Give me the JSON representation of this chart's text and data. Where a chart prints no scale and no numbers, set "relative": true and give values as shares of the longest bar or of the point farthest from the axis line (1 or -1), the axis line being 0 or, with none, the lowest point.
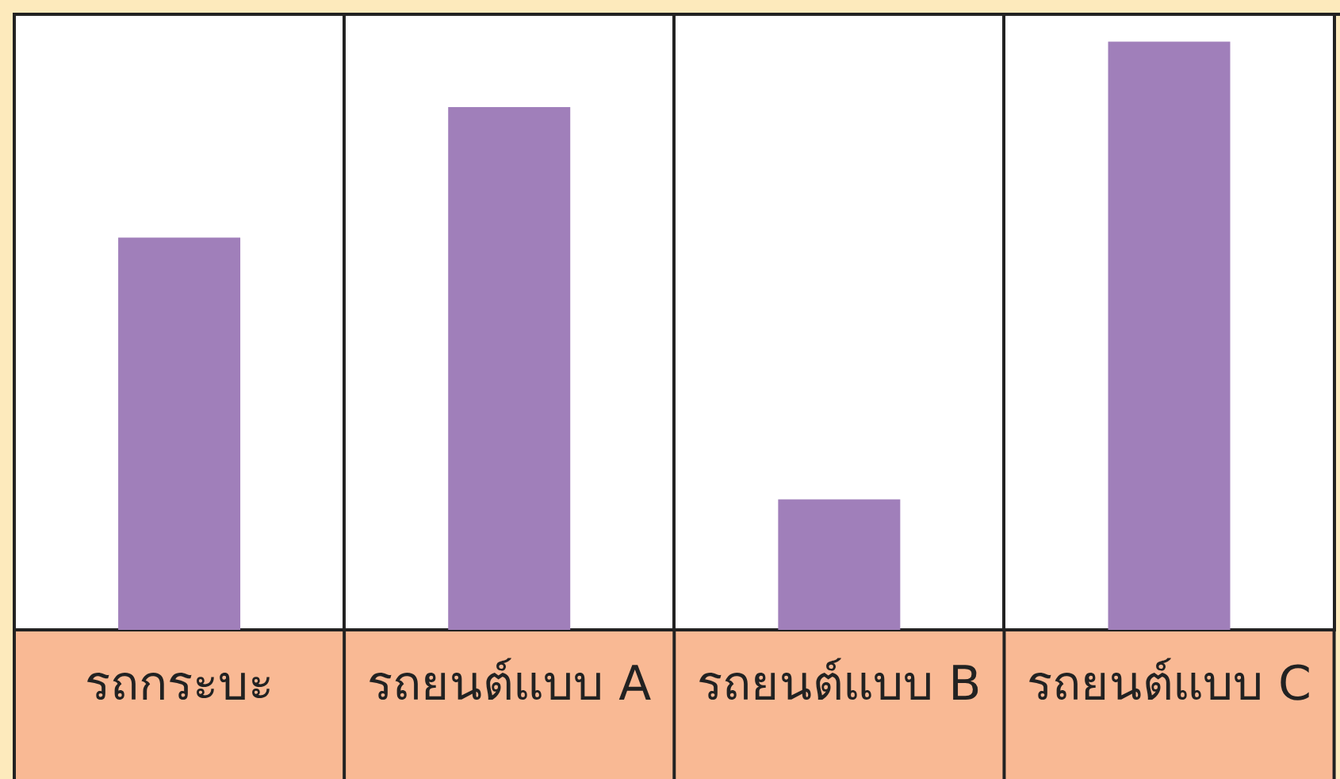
{
  "chart_data": {
    "type": "bar",
    "relative": true,
    "categories": [
      "รถกระบะ",
      "รถยนต์แบบ A",
      "รถยนต์แบบ B",
      "รถยนต์แบบ C"
    ],
    "values": [
      0.667,
      0.889,
      0.222,
      1
    ],
    "color": "#a07fba",
    "grid": "x",
    "legend": false
  }
}
